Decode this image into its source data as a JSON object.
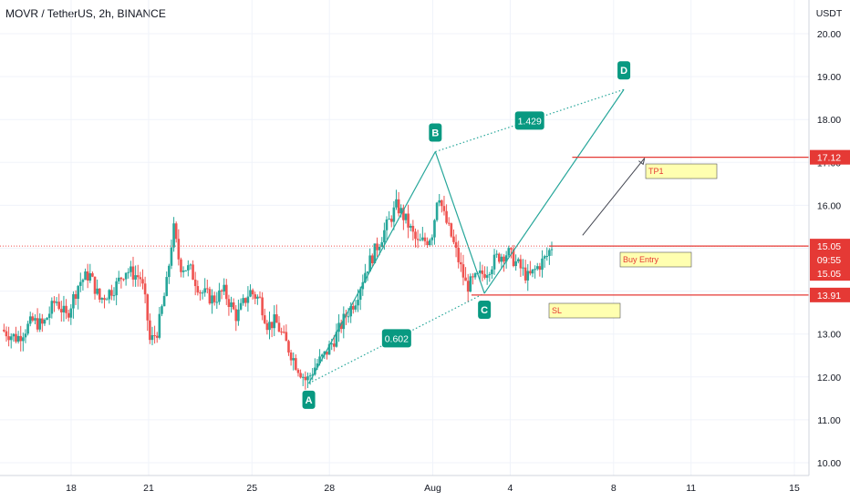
{
  "header": {
    "symbol": "MOVR / TetherUS, 2h, BINANCE"
  },
  "colors": {
    "up": "#26a69a",
    "down": "#ef5350",
    "harmonic": "#26a69a",
    "label_bg": "#089981",
    "level_red": "#e53935",
    "note_bg": "#ffffb0",
    "dotted_price": "#ef5350"
  },
  "chart_data": {
    "type": "candlestick",
    "title": "MOVR / TetherUS, 2h, BINANCE",
    "currency": "USDT",
    "ylim": [
      9.8,
      20.6
    ],
    "y_ticks": [
      "10.00",
      "11.00",
      "12.00",
      "13.00",
      "14.00",
      "15.00",
      "16.00",
      "17.00",
      "18.00",
      "19.00",
      "20.00"
    ],
    "x_ticks": [
      "18",
      "21",
      "25",
      "28",
      "Aug",
      "4",
      "8",
      "11",
      "15"
    ],
    "x_tick_days": [
      18,
      21,
      25,
      28,
      32,
      35,
      39,
      42,
      46
    ],
    "day_ref": {
      "day": 18,
      "unit": "July"
    },
    "price_path": [
      [
        15.4,
        13.1
      ],
      [
        16.0,
        12.9
      ],
      [
        16.6,
        13.3
      ],
      [
        17.0,
        13.2
      ],
      [
        17.5,
        13.8
      ],
      [
        17.9,
        13.4
      ],
      [
        18.4,
        14.2
      ],
      [
        18.8,
        14.4
      ],
      [
        19.2,
        13.8
      ],
      [
        19.8,
        14.1
      ],
      [
        20.2,
        14.5
      ],
      [
        20.8,
        14.3
      ],
      [
        21.0,
        13.6
      ],
      [
        21.15,
        12.8
      ],
      [
        21.45,
        13.1
      ],
      [
        21.8,
        14.2
      ],
      [
        22.05,
        15.5
      ],
      [
        22.3,
        14.6
      ],
      [
        22.7,
        14.5
      ],
      [
        23.1,
        14.0
      ],
      [
        23.6,
        13.8
      ],
      [
        24.0,
        14.0
      ],
      [
        24.5,
        13.4
      ],
      [
        25.0,
        14.0
      ],
      [
        25.4,
        13.8
      ],
      [
        25.7,
        13.2
      ],
      [
        26.0,
        13.3
      ],
      [
        26.4,
        12.8
      ],
      [
        26.8,
        12.3
      ],
      [
        27.2,
        11.9
      ],
      [
        27.6,
        12.3
      ],
      [
        27.9,
        12.5
      ],
      [
        28.3,
        12.9
      ],
      [
        28.7,
        13.4
      ],
      [
        29.1,
        13.8
      ],
      [
        29.5,
        14.5
      ],
      [
        29.9,
        15.0
      ],
      [
        30.3,
        15.5
      ],
      [
        30.7,
        16.0
      ],
      [
        31.1,
        15.6
      ],
      [
        31.5,
        15.1
      ],
      [
        31.9,
        15.2
      ],
      [
        32.1,
        15.4
      ],
      [
        32.3,
        16.4
      ],
      [
        32.5,
        15.8
      ],
      [
        32.8,
        15.3
      ],
      [
        33.1,
        14.7
      ],
      [
        33.4,
        14.1
      ],
      [
        33.8,
        14.3
      ],
      [
        34.2,
        14.5
      ],
      [
        34.6,
        14.8
      ],
      [
        35.0,
        14.9
      ],
      [
        35.4,
        14.6
      ],
      [
        35.8,
        14.3
      ],
      [
        36.2,
        14.6
      ],
      [
        36.5,
        14.8
      ],
      [
        36.7,
        15.05
      ]
    ],
    "candle_count": 230,
    "candle_span_days": [
      15.4,
      36.7
    ],
    "harmonic_pattern": {
      "points": [
        {
          "label": "A",
          "day": 27.2,
          "price": 11.85
        },
        {
          "label": "B",
          "day": 32.1,
          "price": 17.25
        },
        {
          "label": "C",
          "day": 34.0,
          "price": 13.95
        },
        {
          "label": "D",
          "day": 39.4,
          "price": 18.7
        }
      ],
      "ratios": [
        {
          "label": "0.602",
          "between": [
            "A",
            "C"
          ]
        },
        {
          "label": "1.429",
          "between": [
            "B",
            "D"
          ]
        }
      ]
    },
    "levels": [
      {
        "name": "TP1",
        "price": 17.12,
        "tag": "17.12"
      },
      {
        "name": "Buy Entry",
        "price": 15.05,
        "tag": "15.05"
      },
      {
        "name": "SL",
        "price": 13.91,
        "tag": "13.91"
      }
    ],
    "current_price": {
      "price": "15.05",
      "countdown": "09:55",
      "second": "15.05"
    },
    "projection_arrow": {
      "from": [
        37.8,
        15.3
      ],
      "to": [
        40.2,
        17.1
      ]
    }
  }
}
